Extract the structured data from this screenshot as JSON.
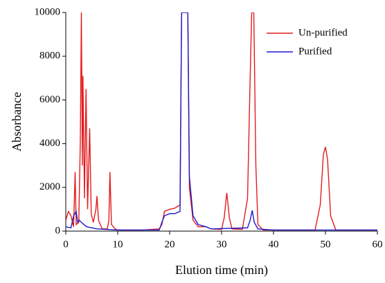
{
  "chart_data": {
    "type": "line",
    "x_label": "Elution time (min)",
    "y_label": "Absorbance",
    "xlim": [
      0,
      60
    ],
    "xticks": [
      0,
      10,
      20,
      30,
      40,
      50,
      60
    ],
    "ylim": [
      0,
      10000
    ],
    "yticks": [
      0,
      2000,
      4000,
      6000,
      8000,
      10000
    ],
    "legend": "top-right",
    "series": [
      {
        "name": "Un-purified",
        "color": "#e41a1c",
        "x": [
          0,
          0.5,
          1,
          1.5,
          1.8,
          2.0,
          2.5,
          2.8,
          3.0,
          3.2,
          3.3,
          3.6,
          3.9,
          4.2,
          4.6,
          4.9,
          5.3,
          5.8,
          6.0,
          6.3,
          7,
          8,
          8.3,
          8.5,
          8.8,
          9.5,
          10,
          15,
          18,
          18.5,
          19,
          20,
          21,
          22,
          22.3,
          23.5,
          23.8,
          24.5,
          25.5,
          27,
          28,
          30,
          30.5,
          31,
          31.5,
          32,
          34,
          35,
          35.5,
          35.8,
          36.2,
          36.6,
          37,
          38,
          48,
          49,
          49.6,
          50,
          50.4,
          51,
          52,
          60
        ],
        "values": [
          500,
          900,
          700,
          200,
          2700,
          300,
          400,
          4100,
          10000,
          3000,
          7100,
          1500,
          6500,
          1000,
          4700,
          800,
          400,
          1000,
          1600,
          500,
          100,
          100,
          500,
          2700,
          300,
          100,
          50,
          50,
          100,
          300,
          900,
          1000,
          1050,
          1200,
          10000,
          10000,
          2000,
          500,
          200,
          200,
          100,
          80,
          600,
          1750,
          600,
          100,
          80,
          1500,
          7000,
          10000,
          10000,
          3000,
          300,
          50,
          50,
          1200,
          3500,
          3850,
          3300,
          700,
          50,
          50
        ]
      },
      {
        "name": "Purified",
        "color": "#1a1acc",
        "x": [
          0,
          1,
          1.5,
          2,
          2.3,
          2.6,
          3,
          4,
          6,
          10,
          18,
          18.5,
          19,
          20,
          21,
          22,
          22.3,
          23.5,
          23.8,
          24.5,
          25.5,
          27,
          28,
          35,
          35.5,
          35.9,
          36.3,
          37,
          40,
          60
        ],
        "values": [
          200,
          150,
          700,
          900,
          400,
          500,
          400,
          200,
          100,
          50,
          50,
          400,
          700,
          800,
          800,
          900,
          10000,
          10000,
          2500,
          700,
          300,
          200,
          100,
          150,
          500,
          950,
          400,
          100,
          50,
          50
        ]
      }
    ]
  }
}
